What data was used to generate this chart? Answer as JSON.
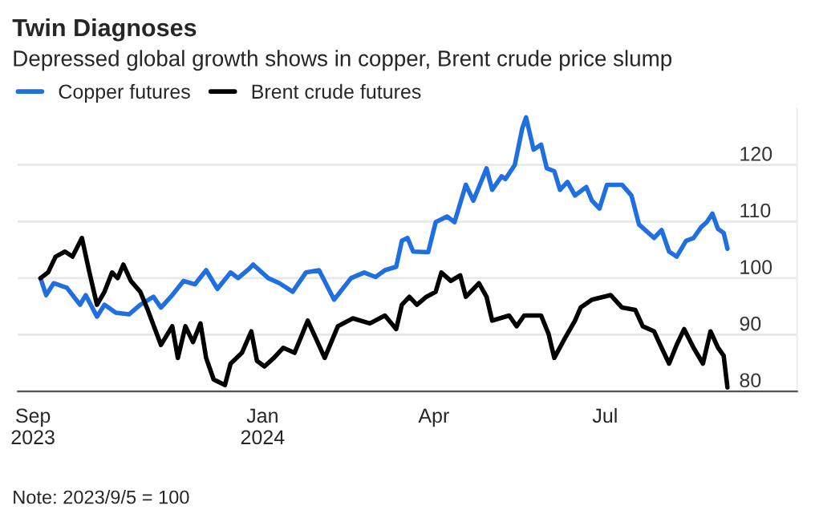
{
  "chart_data": {
    "type": "line",
    "title": "Twin Diagnoses",
    "subtitle": "Depressed global growth shows in copper, Brent crude price slump",
    "annotations": [
      "Note: 2023/9/5 = 100"
    ],
    "xlim": [
      "2023-08-24",
      "2024-10-11"
    ],
    "xticks": [
      {
        "value": "2023-09-01",
        "label": "Sep\n2023"
      },
      {
        "value": "2024-01-01",
        "label": "Jan\n2024"
      },
      {
        "value": "2024-04-01",
        "label": "Apr"
      },
      {
        "value": "2024-07-01",
        "label": "Jul"
      }
    ],
    "ylim": [
      80,
      130
    ],
    "yticks": [
      80,
      90,
      100,
      110,
      120
    ],
    "grid": "y",
    "legend": "top left",
    "line_style": "solid",
    "marker": "none",
    "series": [
      {
        "name": "Copper futures",
        "color": "#1f6fe0",
        "x": [
          "2023-09-05",
          "2023-09-08",
          "2023-09-12",
          "2023-09-19",
          "2023-09-26",
          "2023-09-29",
          "2023-10-05",
          "2023-10-09",
          "2023-10-15",
          "2023-10-22",
          "2023-10-28",
          "2023-11-04",
          "2023-11-08",
          "2023-11-14",
          "2023-11-20",
          "2023-11-26",
          "2023-12-02",
          "2023-12-08",
          "2023-12-15",
          "2023-12-19",
          "2023-12-25",
          "2023-12-27",
          "2024-01-04",
          "2024-01-10",
          "2024-01-17",
          "2024-01-24",
          "2024-01-31",
          "2024-02-08",
          "2024-02-17",
          "2024-02-24",
          "2024-03-01",
          "2024-03-06",
          "2024-03-12",
          "2024-03-15",
          "2024-03-18",
          "2024-03-21",
          "2024-03-29",
          "2024-04-02",
          "2024-04-08",
          "2024-04-12",
          "2024-04-18",
          "2024-04-22",
          "2024-04-29",
          "2024-05-02",
          "2024-05-07",
          "2024-05-09",
          "2024-05-14",
          "2024-05-18",
          "2024-05-20",
          "2024-05-24",
          "2024-05-28",
          "2024-05-31",
          "2024-06-04",
          "2024-06-07",
          "2024-06-11",
          "2024-06-15",
          "2024-06-21",
          "2024-06-24",
          "2024-06-28",
          "2024-07-02",
          "2024-07-10",
          "2024-07-15",
          "2024-07-19",
          "2024-07-27",
          "2024-07-31",
          "2024-08-04",
          "2024-08-08",
          "2024-08-13",
          "2024-08-17",
          "2024-08-21",
          "2024-08-24",
          "2024-08-27",
          "2024-08-30",
          "2024-09-02",
          "2024-09-04"
        ],
        "values": [
          100,
          97,
          99.1,
          98.3,
          95.3,
          97,
          93.2,
          95.3,
          93.9,
          93.6,
          95.3,
          96.7,
          94.8,
          97,
          99.5,
          98.9,
          101.4,
          98.1,
          101,
          100,
          101.7,
          102.4,
          100,
          99.1,
          97.6,
          101,
          101.4,
          96.2,
          100,
          101,
          100.2,
          101.4,
          102,
          106.6,
          107.1,
          104.7,
          104.6,
          109.9,
          110.9,
          109.9,
          116.5,
          113.7,
          119.4,
          115.6,
          118,
          117.5,
          120,
          126.5,
          128.4,
          122.7,
          123.6,
          119.4,
          118.9,
          115.6,
          117,
          114.6,
          116.1,
          113.7,
          112.3,
          116.5,
          116.5,
          114.6,
          109.5,
          107.1,
          108.5,
          104.7,
          103.8,
          106.6,
          107.1,
          109,
          109.9,
          111.4,
          108.7,
          108,
          105.2
        ]
      },
      {
        "name": "Brent crude futures",
        "color": "#000000",
        "x": [
          "2023-09-05",
          "2023-09-09",
          "2023-09-13",
          "2023-09-18",
          "2023-09-22",
          "2023-09-27",
          "2023-10-01",
          "2023-10-05",
          "2023-10-09",
          "2023-10-13",
          "2023-10-16",
          "2023-10-19",
          "2023-10-23",
          "2023-10-28",
          "2023-11-01",
          "2023-11-08",
          "2023-11-14",
          "2023-11-17",
          "2023-11-21",
          "2023-11-25",
          "2023-11-29",
          "2023-12-02",
          "2023-12-06",
          "2023-12-12",
          "2023-12-15",
          "2023-12-21",
          "2023-12-26",
          "2023-12-29",
          "2024-01-02",
          "2024-01-07",
          "2024-01-12",
          "2024-01-18",
          "2024-01-25",
          "2024-01-29",
          "2024-02-03",
          "2024-02-10",
          "2024-02-18",
          "2024-02-27",
          "2024-03-06",
          "2024-03-12",
          "2024-03-15",
          "2024-03-19",
          "2024-03-23",
          "2024-03-28",
          "2024-04-02",
          "2024-04-05",
          "2024-04-10",
          "2024-04-15",
          "2024-04-18",
          "2024-04-25",
          "2024-04-29",
          "2024-05-02",
          "2024-05-11",
          "2024-05-15",
          "2024-05-19",
          "2024-05-28",
          "2024-06-01",
          "2024-06-04",
          "2024-06-10",
          "2024-06-15",
          "2024-06-18",
          "2024-06-24",
          "2024-07-04",
          "2024-07-10",
          "2024-07-17",
          "2024-07-21",
          "2024-07-27",
          "2024-07-31",
          "2024-08-04",
          "2024-08-08",
          "2024-08-12",
          "2024-08-17",
          "2024-08-22",
          "2024-08-26",
          "2024-08-30",
          "2024-09-02",
          "2024-09-04"
        ],
        "values": [
          100,
          101,
          103.8,
          104.7,
          103.8,
          107.1,
          101,
          95.3,
          97.6,
          101,
          100,
          102.4,
          99.5,
          97.6,
          94.4,
          88.2,
          91.5,
          85.9,
          91.5,
          88.7,
          92,
          85.9,
          82.1,
          81.1,
          84.9,
          86.8,
          90.6,
          85.4,
          84.4,
          85.9,
          87.7,
          86.8,
          92.5,
          89.6,
          85.9,
          91.5,
          92.9,
          92,
          93.4,
          91,
          95.3,
          96.7,
          95.3,
          96.7,
          97.6,
          101,
          99.5,
          100.5,
          96.7,
          99.1,
          96.7,
          92.5,
          93.4,
          91.5,
          93.4,
          93.4,
          90.1,
          85.9,
          89.6,
          92.5,
          94.8,
          96.2,
          97,
          94.8,
          94.4,
          91.5,
          90.6,
          87.7,
          84.9,
          88.2,
          91,
          87.7,
          84.9,
          90.6,
          87.7,
          86.3,
          80.7
        ]
      }
    ]
  }
}
